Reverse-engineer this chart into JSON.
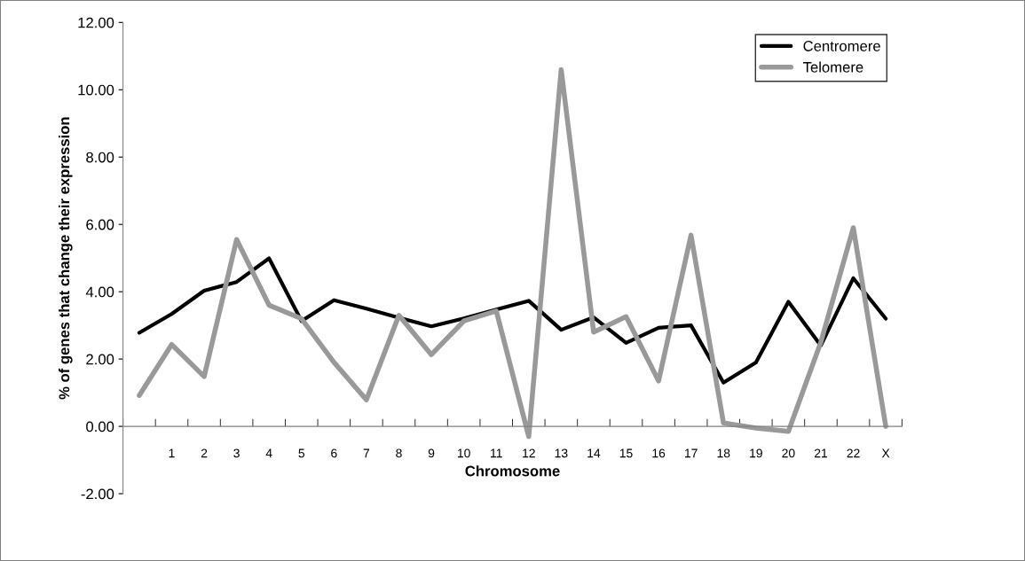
{
  "chart_data": {
    "type": "line",
    "xlabel": "Chromosome",
    "ylabel": "% of genes that change their expression",
    "categories": [
      null,
      "1",
      "2",
      "3",
      "4",
      "5",
      "6",
      "7",
      "8",
      "9",
      "10",
      "11",
      "12",
      "13",
      "14",
      "15",
      "16",
      "17",
      "18",
      "19",
      "20",
      "21",
      "22",
      "X"
    ],
    "series": [
      {
        "name": "Centromere",
        "color": "#000000",
        "values": [
          2.78,
          3.34,
          4.03,
          4.29,
          4.99,
          3.13,
          3.75,
          3.5,
          3.23,
          2.97,
          3.21,
          3.47,
          3.73,
          2.87,
          3.24,
          2.48,
          2.93,
          3.0,
          1.3,
          1.9,
          3.7,
          2.4,
          4.4,
          3.2
        ]
      },
      {
        "name": "Telomere",
        "color": "#999999",
        "values": [
          0.92,
          2.43,
          1.48,
          5.55,
          3.6,
          3.2,
          1.9,
          0.79,
          3.3,
          2.13,
          3.13,
          3.43,
          -0.3,
          10.6,
          2.8,
          3.26,
          1.35,
          5.68,
          0.1,
          -0.05,
          -0.15,
          2.5,
          5.9,
          0.0
        ]
      }
    ],
    "ylim": [
      -2,
      12
    ],
    "yticks": [
      {
        "value": -2,
        "label": "-2.00"
      },
      {
        "value": 0,
        "label": "0.00"
      },
      {
        "value": 2,
        "label": "2.00"
      },
      {
        "value": 4,
        "label": "4.00"
      },
      {
        "value": 6,
        "label": "6.00"
      },
      {
        "value": 8,
        "label": "8.00"
      },
      {
        "value": 10,
        "label": "10.00"
      },
      {
        "value": 12,
        "label": "12.00"
      }
    ],
    "grid": false,
    "legend": "top right",
    "marker": "none",
    "line_style": "solid"
  }
}
